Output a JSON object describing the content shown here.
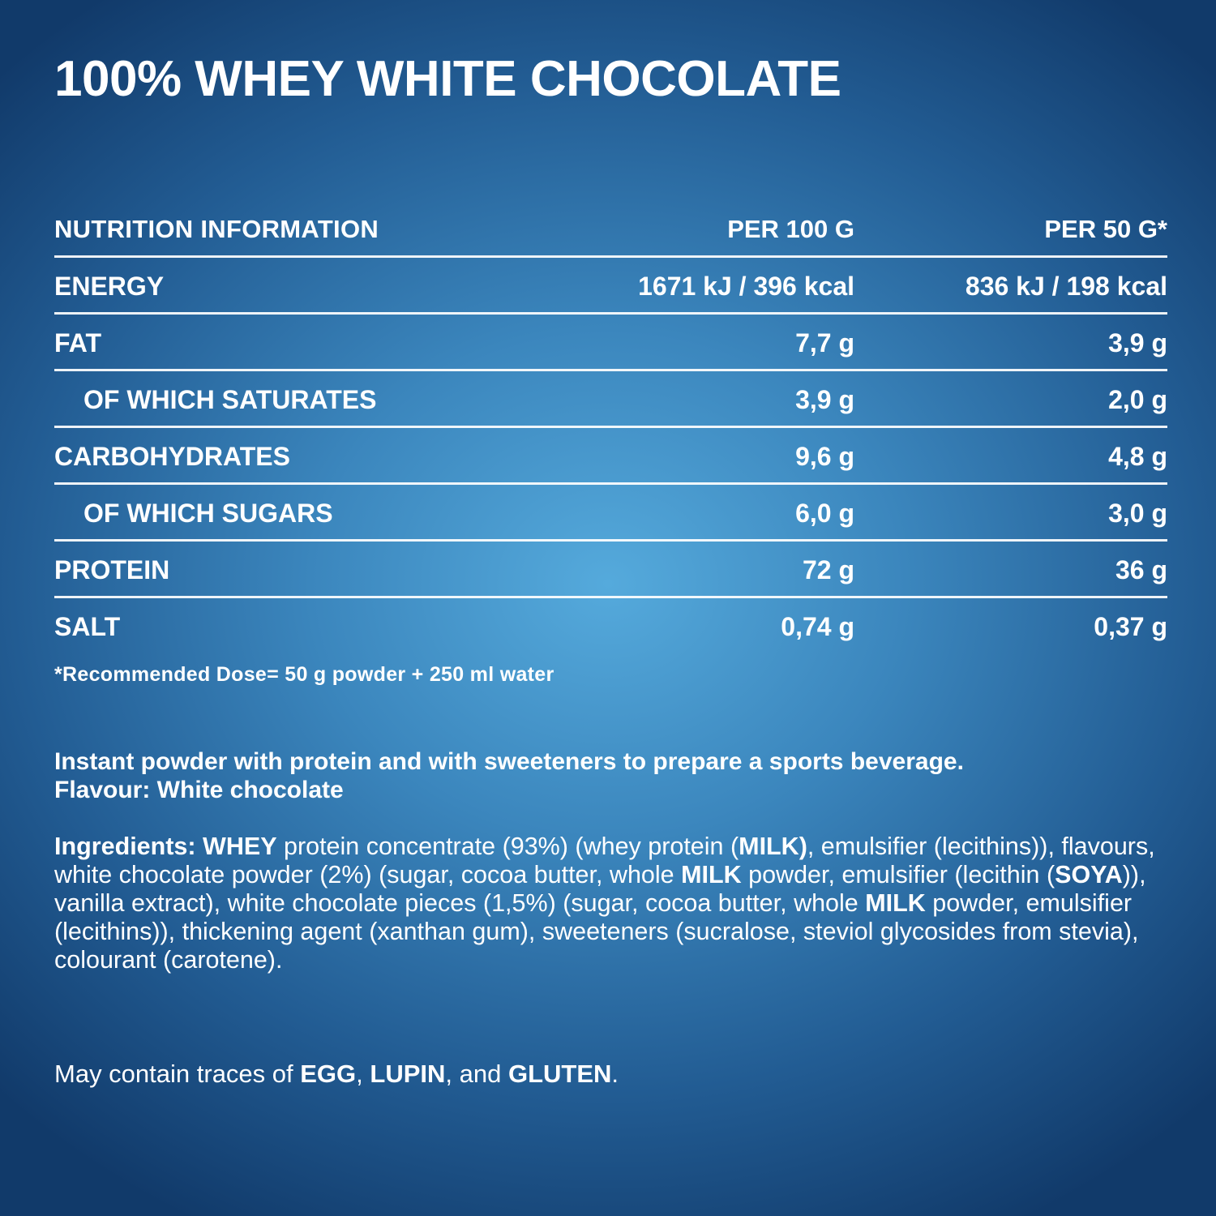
{
  "title": "100% WHEY WHITE CHOCOLATE",
  "nutrition": {
    "header": {
      "name": "NUTRITION INFORMATION",
      "col1": "PER 100 G",
      "col2": "PER 50 G*"
    },
    "rows": [
      {
        "name": "ENERGY",
        "v100": "1671 kJ / 396 kcal",
        "v50": "836 kJ / 198 kcal"
      },
      {
        "name": "FAT",
        "v100": "7,7 g",
        "v50": "3,9 g"
      },
      {
        "name": "OF WHICH SATURATES",
        "v100": "3,9 g",
        "v50": "2,0 g"
      },
      {
        "name": "CARBOHYDRATES",
        "v100": "9,6 g",
        "v50": "4,8 g"
      },
      {
        "name": "OF WHICH SUGARS",
        "v100": "6,0 g",
        "v50": "3,0 g"
      },
      {
        "name": "PROTEIN",
        "v100": "72 g",
        "v50": "36 g"
      },
      {
        "name": "SALT",
        "v100": "0,74 g",
        "v50": "0,37 g"
      }
    ]
  },
  "footnote": "*Recommended Dose= 50 g powder + 250 ml water",
  "description": {
    "line1": "Instant powder with protein and with sweeteners to prepare a sports beverage.",
    "line2": "Flavour: White chocolate"
  },
  "ingredients": {
    "label": "Ingredients:",
    "s1": "WHEY",
    "t1": " protein concentrate (93%) (whey protein (",
    "s2": "MILK)",
    "t2": ", emulsifier (lecithins)), flavours, white chocolate powder (2%) (sugar, cocoa butter, whole ",
    "s3": "MILK",
    "t3": " powder, emulsifier (lecithin (",
    "s4": "SOYA",
    "t4": ")), vanilla extract), white chocolate pieces (1,5%) (sugar, cocoa butter, whole ",
    "s5": "MILK",
    "t5": " powder, emulsifier (lecithins)), thickening agent (xanthan gum), sweeteners (sucralose, steviol glycosides from stevia), colourant (carotene)."
  },
  "traces": {
    "t1": "May contain traces of ",
    "a1": "EGG",
    "t2": ", ",
    "a2": "LUPIN",
    "t3": ", and ",
    "a3": "GLUTEN",
    "t4": "."
  }
}
